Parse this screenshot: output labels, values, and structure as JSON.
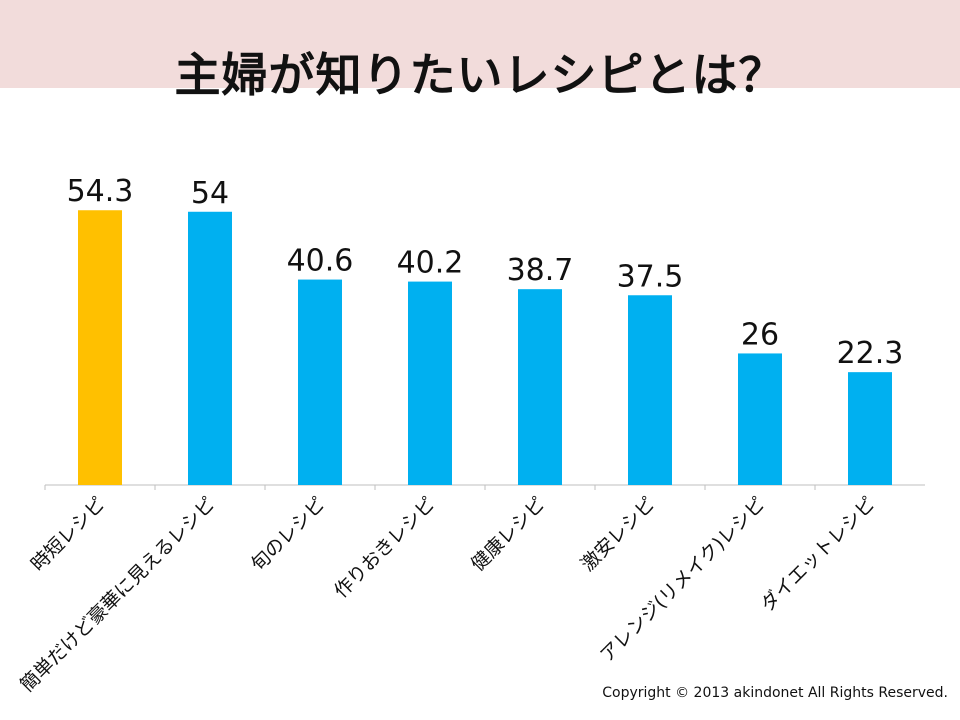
{
  "page": {
    "title": "主婦が知りたいレシピとは？",
    "copyright": "Copyright © 2013 akindonet All Rights Reserved.",
    "band_color": "#f2dcdb"
  },
  "chart_data": {
    "type": "bar",
    "title": "主婦が知りたいレシピとは？",
    "xlabel": "",
    "ylabel": "",
    "categories": [
      "時短レシピ",
      "簡単だけど豪華に見えるレシピ",
      "旬のレシピ",
      "作りおきレシピ",
      "健康レシピ",
      "激安レシピ",
      "アレンジ(リメイク)レシピ",
      "ダイエットレシピ"
    ],
    "values": [
      54.3,
      54,
      40.6,
      40.2,
      38.7,
      37.5,
      26,
      22.3
    ],
    "ylim": [
      0,
      55
    ],
    "grid": false,
    "legend": "none",
    "colors": [
      "#ffc000",
      "#00b0f0",
      "#00b0f0",
      "#00b0f0",
      "#00b0f0",
      "#00b0f0",
      "#00b0f0",
      "#00b0f0"
    ]
  }
}
